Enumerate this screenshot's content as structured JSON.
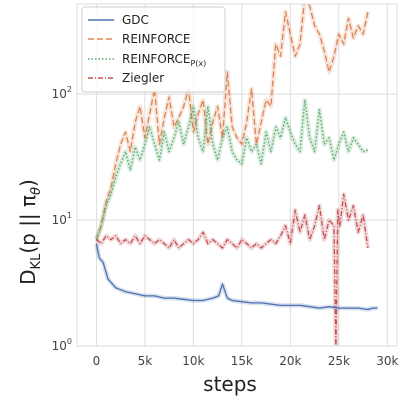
{
  "chart_data": {
    "type": "line",
    "xlabel": "steps",
    "ylabel": "D_KL(p || π_θ)",
    "ylabel_parts": {
      "main": "D",
      "sub": "KL",
      "rest": "(p || π",
      "sub2": "θ",
      "close": ")"
    },
    "yscale": "log",
    "xlim": [
      -2000,
      31000
    ],
    "ylim": [
      1,
      520
    ],
    "grid": true,
    "legend_position": "top-left",
    "x_ticks": [
      0,
      5000,
      10000,
      15000,
      20000,
      25000,
      30000
    ],
    "x_tick_labels": [
      "0",
      "5k",
      "10k",
      "15k",
      "20k",
      "25k",
      "30k"
    ],
    "y_ticks": [
      1,
      10,
      100
    ],
    "y_tick_labels": [
      {
        "base": "10",
        "exp": "0"
      },
      {
        "base": "10",
        "exp": "1"
      },
      {
        "base": "10",
        "exp": "2"
      }
    ],
    "series": [
      {
        "name": "GDC",
        "color": "#4c72b0",
        "dash": "",
        "x": [
          0,
          300,
          700,
          1200,
          2000,
          3000,
          4000,
          5000,
          6000,
          7000,
          8000,
          9000,
          10000,
          11000,
          12000,
          12600,
          13000,
          13500,
          14000,
          15000,
          16000,
          17000,
          18000,
          19000,
          20000,
          21000,
          22000,
          23000,
          24000,
          25000,
          26000,
          27000,
          28000,
          28500,
          29000
        ],
        "y": [
          6.5,
          5.0,
          4.6,
          3.4,
          2.9,
          2.7,
          2.6,
          2.5,
          2.5,
          2.4,
          2.4,
          2.35,
          2.3,
          2.3,
          2.4,
          2.5,
          3.1,
          2.4,
          2.3,
          2.25,
          2.2,
          2.2,
          2.15,
          2.1,
          2.1,
          2.1,
          2.05,
          2.0,
          2.05,
          2.0,
          2.0,
          2.0,
          1.95,
          2.0,
          2.0
        ]
      },
      {
        "name": "REINFORCE",
        "color": "#dd8452",
        "dash": "6,3",
        "x": [
          0,
          500,
          1000,
          1500,
          2000,
          2500,
          3000,
          3500,
          4000,
          4500,
          5000,
          5500,
          6000,
          6500,
          7000,
          7500,
          8000,
          8500,
          9000,
          9500,
          10000,
          10500,
          11000,
          11500,
          12000,
          12500,
          13000,
          13500,
          14000,
          14500,
          15000,
          15500,
          16000,
          16500,
          17000,
          17500,
          18000,
          18500,
          19000,
          19500,
          20000,
          20500,
          21000,
          21500,
          22000,
          22500,
          23000,
          23500,
          24000,
          24500,
          25000,
          25500,
          26000,
          26500,
          27000,
          27500,
          28000
        ],
        "y": [
          7,
          9,
          14,
          18,
          28,
          40,
          50,
          35,
          60,
          80,
          45,
          70,
          110,
          40,
          65,
          95,
          55,
          65,
          80,
          110,
          50,
          70,
          90,
          40,
          60,
          80,
          45,
          150,
          55,
          45,
          40,
          60,
          110,
          40,
          60,
          90,
          80,
          250,
          200,
          450,
          300,
          200,
          250,
          600,
          500,
          350,
          300,
          220,
          150,
          200,
          300,
          250,
          400,
          280,
          350,
          300,
          450
        ]
      },
      {
        "name": "REINFORCE",
        "name_sub": "P(x)",
        "color": "#55a868",
        "dash": "1.5,2",
        "x": [
          0,
          500,
          1000,
          1500,
          2000,
          2500,
          3000,
          3500,
          4000,
          4500,
          5000,
          5500,
          6000,
          6500,
          7000,
          7500,
          8000,
          8500,
          9000,
          9500,
          10000,
          10500,
          11000,
          11500,
          12000,
          12500,
          13000,
          13500,
          14000,
          14500,
          15000,
          15500,
          16000,
          16500,
          17000,
          17500,
          18000,
          18500,
          19000,
          19500,
          20000,
          20500,
          21000,
          21500,
          22000,
          22500,
          23000,
          23500,
          24000,
          24500,
          25000,
          25500,
          26000,
          26500,
          27000,
          27500,
          28000
        ],
        "y": [
          7,
          9,
          13,
          16,
          22,
          28,
          35,
          25,
          38,
          30,
          40,
          55,
          40,
          30,
          50,
          35,
          45,
          60,
          40,
          55,
          80,
          45,
          35,
          80,
          40,
          30,
          45,
          55,
          35,
          30,
          28,
          45,
          35,
          40,
          28,
          50,
          35,
          55,
          45,
          65,
          50,
          40,
          35,
          90,
          45,
          35,
          75,
          40,
          45,
          30,
          40,
          50,
          35,
          45,
          40,
          35,
          36
        ]
      },
      {
        "name": "Ziegler",
        "color": "#c44e52",
        "dash": "5,2,1,2",
        "x": [
          0,
          500,
          1000,
          1500,
          2000,
          2500,
          3000,
          3500,
          4000,
          4500,
          5000,
          5500,
          6000,
          6500,
          7000,
          7500,
          8000,
          8500,
          9000,
          9500,
          10000,
          10500,
          11000,
          11500,
          12000,
          12500,
          13000,
          13500,
          14000,
          14500,
          15000,
          15500,
          16000,
          16500,
          17000,
          17500,
          18000,
          18500,
          19000,
          19500,
          20000,
          20500,
          21000,
          21500,
          22000,
          22500,
          23000,
          23500,
          24000,
          24500,
          24700,
          24900,
          25100,
          25500,
          26000,
          26500,
          27000,
          27500,
          28000
        ],
        "y": [
          7,
          6.5,
          7.5,
          7,
          7.5,
          6.5,
          7,
          6.5,
          7.5,
          6.5,
          7.5,
          7,
          6.5,
          7,
          6.5,
          6,
          7,
          6,
          6.5,
          7,
          6.5,
          7,
          8,
          6.5,
          7,
          6.5,
          6,
          7,
          6.5,
          6,
          7,
          6.5,
          6,
          6.5,
          6,
          6.5,
          7,
          6.5,
          7.5,
          9,
          6.5,
          12,
          8,
          11,
          7,
          9,
          13,
          7,
          10,
          9,
          0.9,
          12,
          9,
          16,
          10,
          13,
          8,
          11,
          6
        ]
      }
    ]
  }
}
